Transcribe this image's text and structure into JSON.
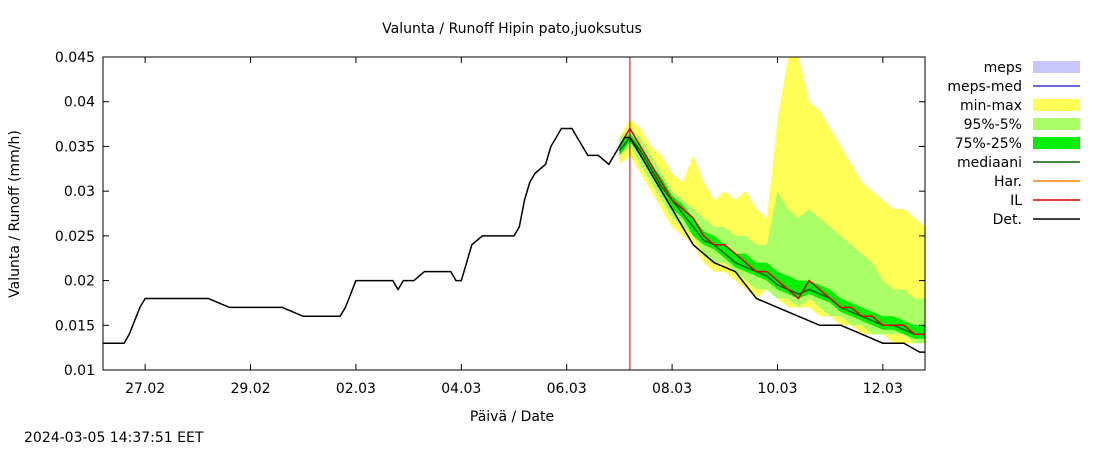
{
  "timestamp": "2024-03-05 14:37:51 EET",
  "colors": {
    "meps": "#c8c8ff",
    "meps_med": "#3c3ccc",
    "min_max": "#ffff55",
    "p95_5": "#aaff66",
    "p75_25": "#00ee00",
    "mediaani": "#006400",
    "har": "#ff8000",
    "il": "#e00000",
    "det": "#000000",
    "forecast_line": "#cc0000"
  },
  "chart_data": {
    "type": "line",
    "title": "Valunta / Runoff  Hipin pato,juoksutus",
    "xlabel": "Päivä / Date",
    "ylabel": "Valunta / Runoff (mm/h)",
    "xlim": [
      -0.4,
      7.4
    ],
    "ylim": [
      0.01,
      0.045
    ],
    "yticks": [
      0.01,
      0.015,
      0.02,
      0.025,
      0.03,
      0.035,
      0.04,
      0.045
    ],
    "ytick_labels": [
      "0.01",
      "0.015",
      "0.02",
      "0.025",
      "0.03",
      "0.035",
      "0.04",
      "0.045"
    ],
    "xticks": [
      0,
      1,
      2,
      3,
      4,
      5,
      6,
      7
    ],
    "xtick_labels": [
      "27.02",
      "29.02",
      "02.03",
      "04.03",
      "06.03",
      "08.03",
      "10.03",
      "12.03"
    ],
    "forecast_start": 4.6,
    "legend": [
      "meps",
      "meps-med",
      "min-max",
      "95%-5%",
      "75%-25%",
      "mediaani",
      "Har.",
      "IL",
      "Det."
    ],
    "legend_position": "right",
    "series": [
      {
        "name": "Det.",
        "x": [
          -0.4,
          -0.2,
          -0.15,
          -0.1,
          -0.05,
          0.0,
          0.05,
          0.1,
          0.15,
          0.3,
          0.6,
          0.8,
          1.0,
          1.3,
          1.5,
          1.7,
          1.8,
          1.85,
          1.9,
          1.95,
          2.0,
          2.2,
          2.35,
          2.4,
          2.45,
          2.55,
          2.65,
          2.8,
          2.9,
          2.95,
          3.0,
          3.05,
          3.1,
          3.2,
          3.25,
          3.35,
          3.4,
          3.45,
          3.5,
          3.55,
          3.6,
          3.65,
          3.7,
          3.8,
          3.85,
          3.9,
          3.95,
          4.0,
          4.05,
          4.1,
          4.15,
          4.2,
          4.3,
          4.4,
          4.45,
          4.5,
          4.55,
          4.6,
          4.7,
          4.8,
          4.9,
          5.0,
          5.1,
          5.2,
          5.4,
          5.6,
          5.8,
          6.0,
          6.2,
          6.4,
          6.6,
          6.8,
          7.0,
          7.2,
          7.35,
          7.4
        ],
        "y": [
          0.013,
          0.013,
          0.014,
          0.0155,
          0.017,
          0.018,
          0.018,
          0.018,
          0.018,
          0.018,
          0.018,
          0.017,
          0.017,
          0.017,
          0.016,
          0.016,
          0.016,
          0.016,
          0.017,
          0.0185,
          0.02,
          0.02,
          0.02,
          0.019,
          0.02,
          0.02,
          0.021,
          0.021,
          0.021,
          0.02,
          0.02,
          0.022,
          0.024,
          0.025,
          0.025,
          0.025,
          0.025,
          0.025,
          0.025,
          0.026,
          0.029,
          0.031,
          0.032,
          0.033,
          0.035,
          0.036,
          0.037,
          0.037,
          0.037,
          0.036,
          0.035,
          0.034,
          0.034,
          0.033,
          0.034,
          0.035,
          0.036,
          0.036,
          0.034,
          0.032,
          0.03,
          0.028,
          0.026,
          0.024,
          0.022,
          0.021,
          0.018,
          0.017,
          0.016,
          0.015,
          0.015,
          0.014,
          0.013,
          0.013,
          0.012,
          0.012
        ]
      },
      {
        "name": "IL",
        "x": [
          4.5,
          4.6,
          4.7,
          4.8,
          4.9,
          5.0,
          5.1,
          5.2,
          5.3,
          5.4,
          5.5,
          5.6,
          5.7,
          5.8,
          5.9,
          6.0,
          6.1,
          6.2,
          6.3,
          6.4,
          6.5,
          6.6,
          6.7,
          6.8,
          6.9,
          7.0,
          7.1,
          7.2,
          7.3,
          7.4
        ],
        "y": [
          0.035,
          0.037,
          0.035,
          0.033,
          0.031,
          0.029,
          0.028,
          0.027,
          0.025,
          0.024,
          0.024,
          0.023,
          0.022,
          0.021,
          0.021,
          0.02,
          0.019,
          0.018,
          0.02,
          0.019,
          0.018,
          0.017,
          0.017,
          0.016,
          0.016,
          0.015,
          0.015,
          0.015,
          0.014,
          0.014
        ]
      },
      {
        "name": "mediaani",
        "x": [
          4.5,
          4.6,
          4.7,
          4.8,
          4.9,
          5.0,
          5.1,
          5.2,
          5.3,
          5.4,
          5.5,
          5.6,
          5.7,
          5.8,
          5.9,
          6.0,
          6.1,
          6.2,
          6.3,
          6.4,
          6.5,
          6.6,
          6.7,
          6.8,
          6.9,
          7.0,
          7.1,
          7.2,
          7.3,
          7.4
        ],
        "y": [
          0.0345,
          0.036,
          0.0345,
          0.0325,
          0.0305,
          0.029,
          0.0275,
          0.026,
          0.0245,
          0.024,
          0.023,
          0.022,
          0.0215,
          0.021,
          0.0205,
          0.0195,
          0.019,
          0.0185,
          0.019,
          0.0185,
          0.018,
          0.017,
          0.0165,
          0.016,
          0.0155,
          0.015,
          0.015,
          0.0145,
          0.014,
          0.014
        ]
      },
      {
        "name": "min-max",
        "type": "band",
        "x": [
          4.5,
          4.6,
          4.7,
          4.8,
          4.9,
          5.0,
          5.1,
          5.2,
          5.3,
          5.4,
          5.5,
          5.6,
          5.7,
          5.8,
          5.9,
          6.0,
          6.1,
          6.2,
          6.3,
          6.4,
          6.5,
          6.6,
          6.7,
          6.8,
          6.9,
          7.0,
          7.1,
          7.2,
          7.3,
          7.4
        ],
        "lower": [
          0.033,
          0.034,
          0.032,
          0.03,
          0.028,
          0.026,
          0.025,
          0.024,
          0.022,
          0.021,
          0.021,
          0.02,
          0.019,
          0.018,
          0.019,
          0.018,
          0.017,
          0.017,
          0.017,
          0.016,
          0.016,
          0.015,
          0.015,
          0.014,
          0.014,
          0.014,
          0.013,
          0.013,
          0.013,
          0.013
        ],
        "upper": [
          0.036,
          0.038,
          0.037,
          0.035,
          0.034,
          0.032,
          0.031,
          0.034,
          0.031,
          0.029,
          0.03,
          0.029,
          0.03,
          0.028,
          0.027,
          0.038,
          0.045,
          0.045,
          0.04,
          0.039,
          0.037,
          0.035,
          0.033,
          0.031,
          0.03,
          0.029,
          0.028,
          0.028,
          0.027,
          0.026
        ]
      },
      {
        "name": "95%-5%",
        "type": "band",
        "x": [
          4.5,
          4.6,
          4.7,
          4.8,
          4.9,
          5.0,
          5.1,
          5.2,
          5.3,
          5.4,
          5.5,
          5.6,
          5.7,
          5.8,
          5.9,
          6.0,
          6.1,
          6.2,
          6.3,
          6.4,
          6.5,
          6.6,
          6.7,
          6.8,
          6.9,
          7.0,
          7.1,
          7.2,
          7.3,
          7.4
        ],
        "lower": [
          0.034,
          0.035,
          0.033,
          0.031,
          0.029,
          0.027,
          0.026,
          0.025,
          0.023,
          0.022,
          0.022,
          0.021,
          0.02,
          0.019,
          0.019,
          0.018,
          0.018,
          0.017,
          0.018,
          0.017,
          0.016,
          0.016,
          0.015,
          0.015,
          0.014,
          0.014,
          0.014,
          0.014,
          0.013,
          0.013
        ],
        "upper": [
          0.036,
          0.037,
          0.036,
          0.034,
          0.032,
          0.03,
          0.029,
          0.028,
          0.027,
          0.026,
          0.026,
          0.025,
          0.025,
          0.024,
          0.024,
          0.03,
          0.028,
          0.027,
          0.028,
          0.027,
          0.026,
          0.025,
          0.024,
          0.023,
          0.022,
          0.02,
          0.019,
          0.019,
          0.018,
          0.018
        ]
      },
      {
        "name": "75%-25%",
        "type": "band",
        "x": [
          4.5,
          4.6,
          4.7,
          4.8,
          4.9,
          5.0,
          5.1,
          5.2,
          5.3,
          5.4,
          5.5,
          5.6,
          5.7,
          5.8,
          5.9,
          6.0,
          6.1,
          6.2,
          6.3,
          6.4,
          6.5,
          6.6,
          6.7,
          6.8,
          6.9,
          7.0,
          7.1,
          7.2,
          7.3,
          7.4
        ],
        "lower": [
          0.034,
          0.0355,
          0.034,
          0.032,
          0.03,
          0.028,
          0.027,
          0.025,
          0.024,
          0.0235,
          0.0225,
          0.0215,
          0.021,
          0.0205,
          0.02,
          0.019,
          0.0185,
          0.018,
          0.0185,
          0.018,
          0.0175,
          0.0165,
          0.016,
          0.0155,
          0.015,
          0.0145,
          0.0145,
          0.014,
          0.0135,
          0.0135
        ],
        "upper": [
          0.035,
          0.0365,
          0.035,
          0.033,
          0.0315,
          0.0295,
          0.0285,
          0.027,
          0.0255,
          0.025,
          0.024,
          0.023,
          0.023,
          0.022,
          0.022,
          0.021,
          0.0205,
          0.02,
          0.02,
          0.0195,
          0.019,
          0.018,
          0.0175,
          0.017,
          0.0165,
          0.016,
          0.016,
          0.0155,
          0.015,
          0.015
        ]
      }
    ]
  }
}
